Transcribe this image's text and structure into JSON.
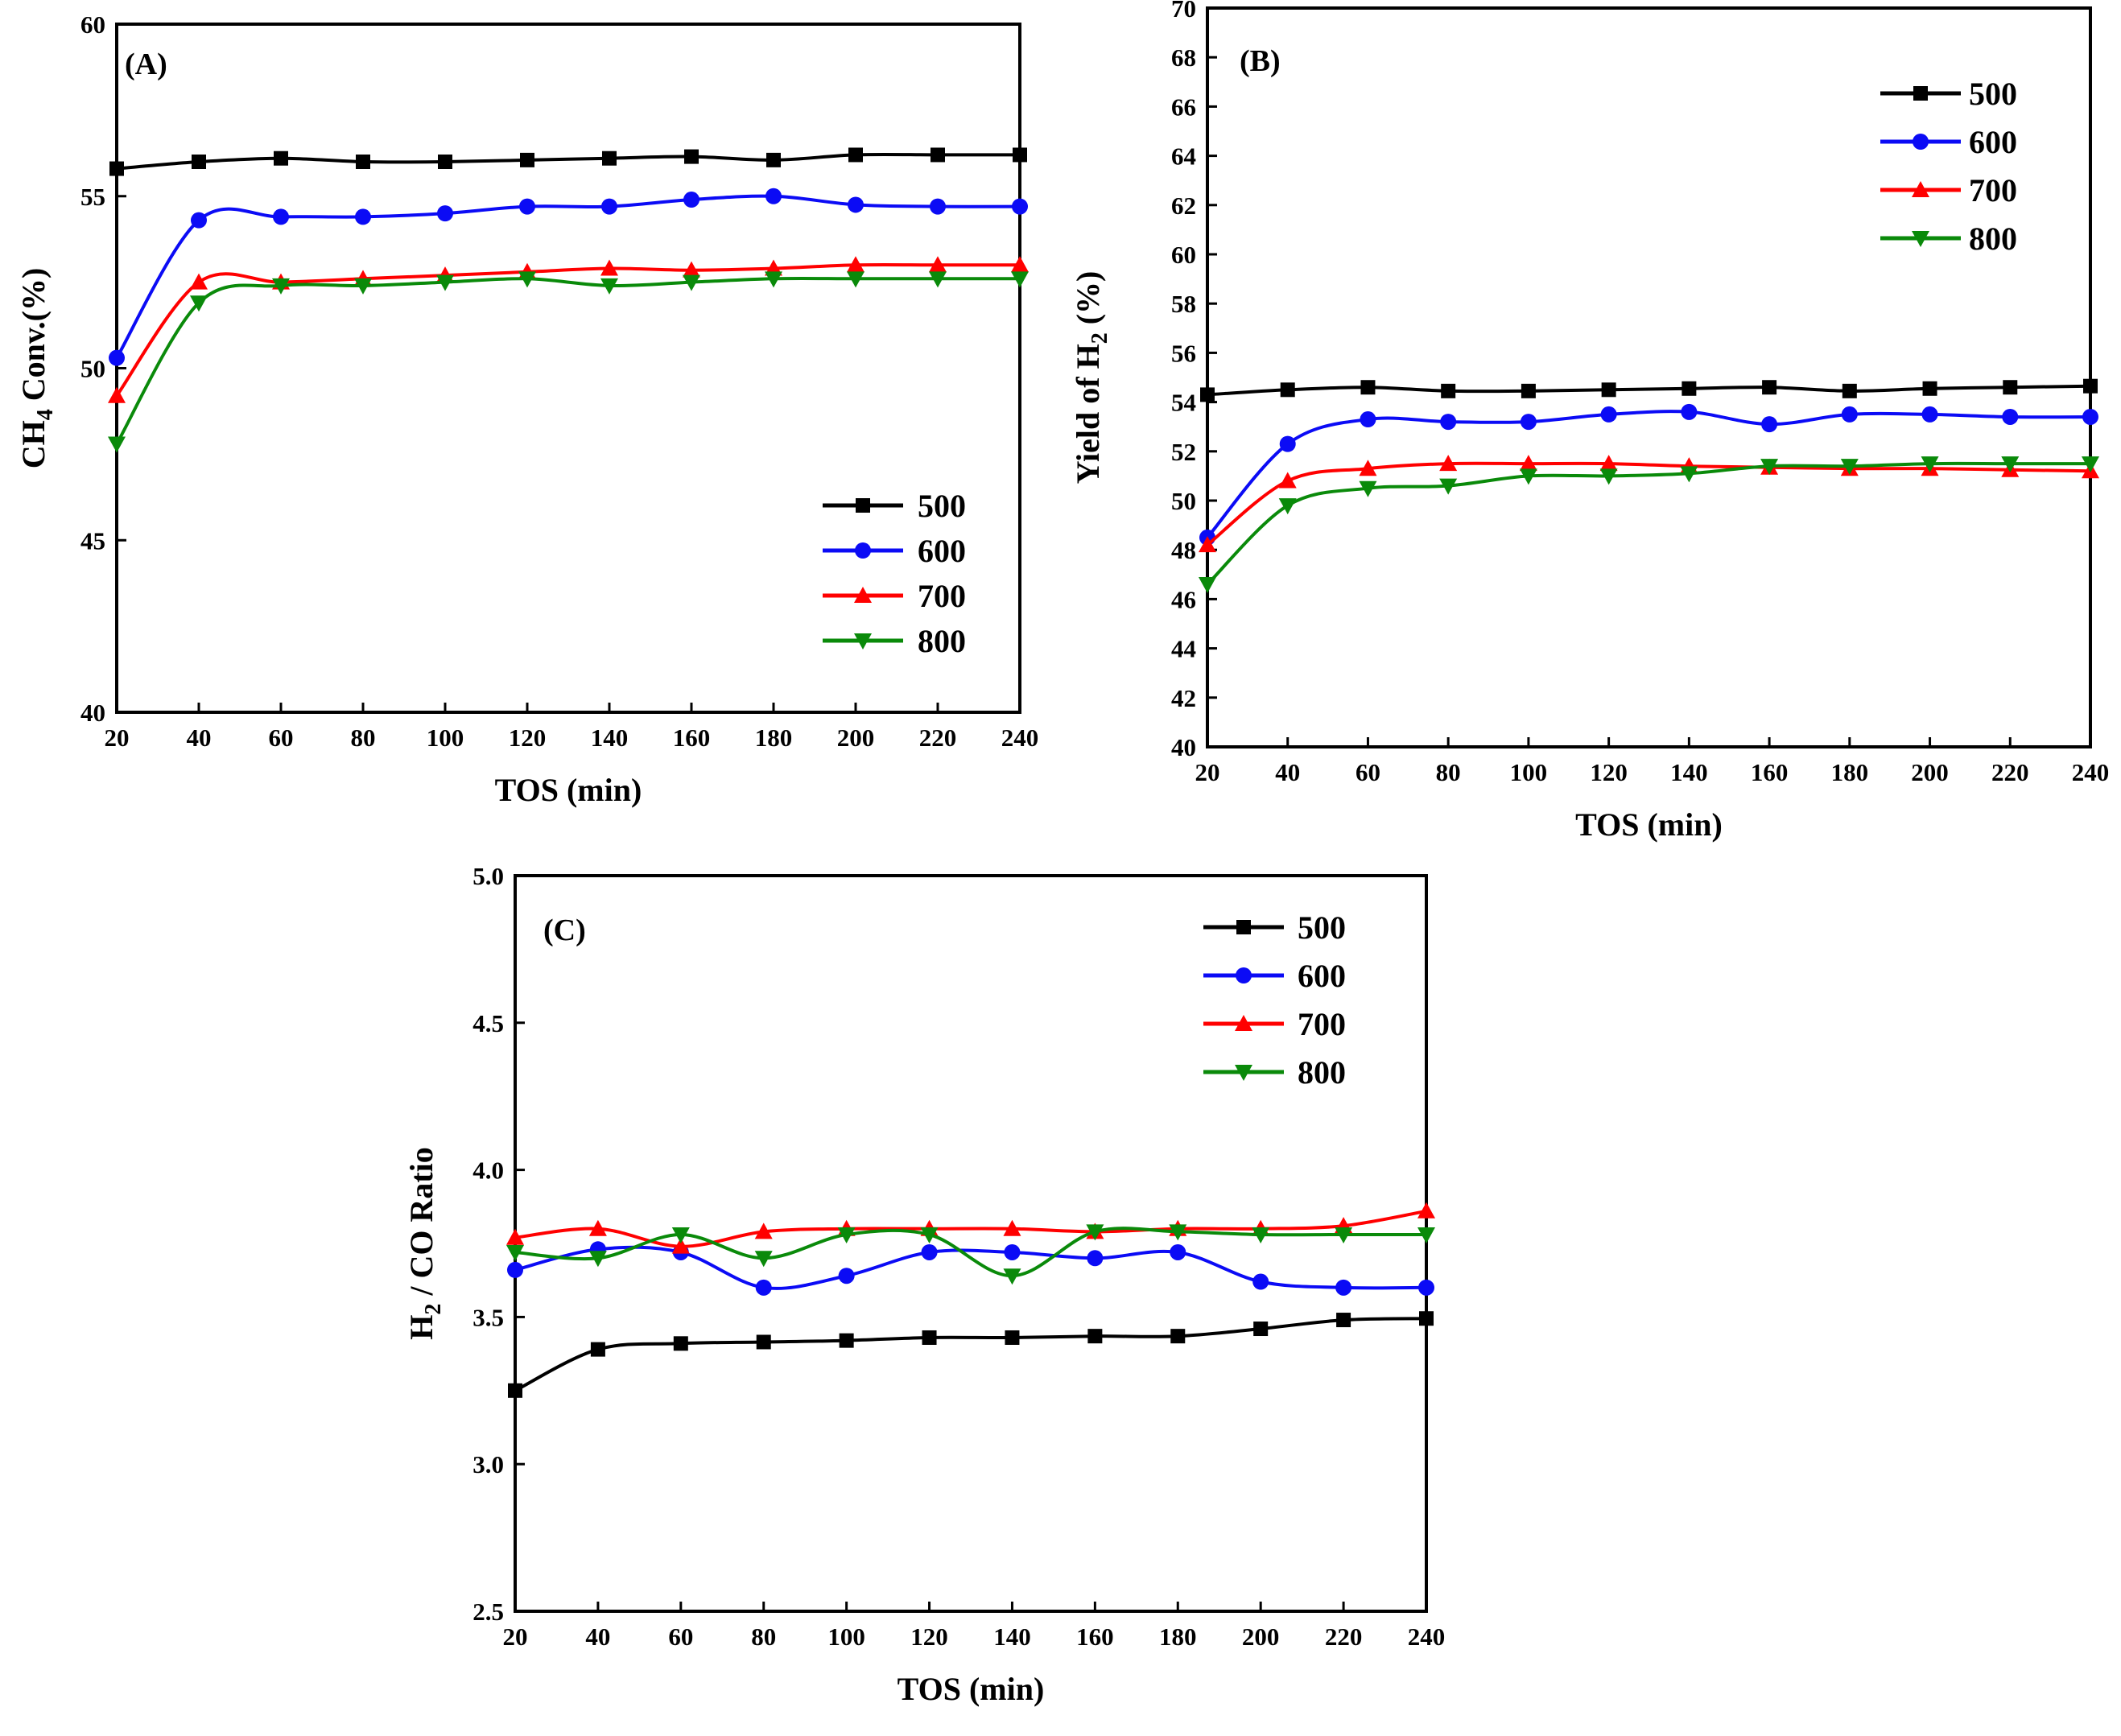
{
  "chart_data": [
    {
      "type": "line",
      "panel_label": "(A)",
      "xlabel": "TOS (min)",
      "ylabel_main": "CH",
      "ylabel_sub": "4",
      "ylabel_rest": " Conv.(%)",
      "xlim": [
        20,
        240
      ],
      "ylim": [
        40,
        60
      ],
      "x": [
        20,
        40,
        60,
        80,
        100,
        120,
        140,
        160,
        180,
        200,
        220,
        240
      ],
      "xticks": [
        20,
        40,
        60,
        80,
        100,
        120,
        140,
        160,
        180,
        200,
        220,
        240
      ],
      "yticks": [
        40,
        45,
        50,
        55,
        60
      ],
      "ytick_labels": [
        "40",
        "45",
        "50",
        "55",
        "60"
      ],
      "legend_position": "bottom-right",
      "series": [
        {
          "name": "500",
          "color": "#000000",
          "marker": "square",
          "values": [
            55.8,
            56.0,
            56.1,
            56.0,
            56.0,
            56.05,
            56.1,
            56.15,
            56.05,
            56.2,
            56.2,
            56.2
          ]
        },
        {
          "name": "600",
          "color": "#0b0bf5",
          "marker": "circle",
          "values": [
            50.3,
            54.3,
            54.4,
            54.4,
            54.5,
            54.7,
            54.7,
            54.9,
            55.0,
            54.75,
            54.7,
            54.7
          ]
        },
        {
          "name": "700",
          "color": "#ff0000",
          "marker": "triangle-up",
          "values": [
            49.2,
            52.5,
            52.5,
            52.6,
            52.7,
            52.8,
            52.9,
            52.85,
            52.9,
            53.0,
            53.0,
            53.0
          ]
        },
        {
          "name": "800",
          "color": "#0a8a0a",
          "marker": "triangle-down",
          "values": [
            47.8,
            51.9,
            52.4,
            52.4,
            52.5,
            52.6,
            52.4,
            52.5,
            52.6,
            52.6,
            52.6,
            52.6
          ]
        }
      ]
    },
    {
      "type": "line",
      "panel_label": "(B)",
      "xlabel": "TOS (min)",
      "ylabel_main": "Yield of H",
      "ylabel_sub": "2",
      "ylabel_rest": " (%)",
      "xlim": [
        20,
        240
      ],
      "ylim": [
        40,
        70
      ],
      "x": [
        20,
        40,
        60,
        80,
        100,
        120,
        140,
        160,
        180,
        200,
        220,
        240
      ],
      "xticks": [
        20,
        40,
        60,
        80,
        100,
        120,
        140,
        160,
        180,
        200,
        220,
        240
      ],
      "yticks": [
        40,
        42,
        44,
        46,
        48,
        50,
        52,
        54,
        56,
        58,
        60,
        62,
        64,
        66,
        68,
        70
      ],
      "ytick_labels": [
        "40",
        "42",
        "44",
        "46",
        "48",
        "50",
        "52",
        "54",
        "56",
        "58",
        "60",
        "62",
        "64",
        "66",
        "68",
        "70"
      ],
      "legend_position": "top-right",
      "series": [
        {
          "name": "500",
          "color": "#000000",
          "marker": "square",
          "values": [
            54.3,
            54.5,
            54.6,
            54.45,
            54.45,
            54.5,
            54.55,
            54.6,
            54.45,
            54.55,
            54.6,
            54.65
          ]
        },
        {
          "name": "600",
          "color": "#0b0bf5",
          "marker": "circle",
          "values": [
            48.5,
            52.3,
            53.3,
            53.2,
            53.2,
            53.5,
            53.6,
            53.1,
            53.5,
            53.5,
            53.4,
            53.4
          ]
        },
        {
          "name": "700",
          "color": "#ff0000",
          "marker": "triangle-up",
          "values": [
            48.2,
            50.8,
            51.3,
            51.5,
            51.5,
            51.5,
            51.4,
            51.35,
            51.3,
            51.3,
            51.25,
            51.2
          ]
        },
        {
          "name": "800",
          "color": "#0a8a0a",
          "marker": "triangle-down",
          "values": [
            46.6,
            49.8,
            50.5,
            50.6,
            51.0,
            51.0,
            51.1,
            51.4,
            51.4,
            51.5,
            51.5,
            51.5
          ]
        }
      ]
    },
    {
      "type": "line",
      "panel_label": "(C)",
      "xlabel": "TOS (min)",
      "ylabel_main": "H",
      "ylabel_sub": "2",
      "ylabel_rest": " / CO Ratio",
      "xlim": [
        20,
        240
      ],
      "ylim": [
        2.5,
        5.0
      ],
      "x": [
        20,
        40,
        60,
        80,
        100,
        120,
        140,
        160,
        180,
        200,
        220,
        240
      ],
      "xticks": [
        20,
        40,
        60,
        80,
        100,
        120,
        140,
        160,
        180,
        200,
        220,
        240
      ],
      "yticks": [
        2.5,
        3.0,
        3.5,
        4.0,
        4.5,
        5.0
      ],
      "ytick_labels": [
        "2.5",
        "3.0",
        "3.5",
        "4.0",
        "4.5",
        "5.0"
      ],
      "legend_position": "top-right",
      "series": [
        {
          "name": "500",
          "color": "#000000",
          "marker": "square",
          "values": [
            3.25,
            3.39,
            3.41,
            3.415,
            3.42,
            3.43,
            3.43,
            3.435,
            3.435,
            3.46,
            3.49,
            3.495
          ]
        },
        {
          "name": "600",
          "color": "#0b0bf5",
          "marker": "circle",
          "values": [
            3.66,
            3.73,
            3.72,
            3.6,
            3.64,
            3.72,
            3.72,
            3.7,
            3.72,
            3.62,
            3.6,
            3.6
          ]
        },
        {
          "name": "700",
          "color": "#ff0000",
          "marker": "triangle-up",
          "values": [
            3.77,
            3.8,
            3.74,
            3.79,
            3.8,
            3.8,
            3.8,
            3.79,
            3.8,
            3.8,
            3.81,
            3.86
          ]
        },
        {
          "name": "800",
          "color": "#0a8a0a",
          "marker": "triangle-down",
          "values": [
            3.72,
            3.7,
            3.78,
            3.7,
            3.78,
            3.78,
            3.64,
            3.79,
            3.79,
            3.78,
            3.78,
            3.78
          ]
        }
      ]
    }
  ]
}
